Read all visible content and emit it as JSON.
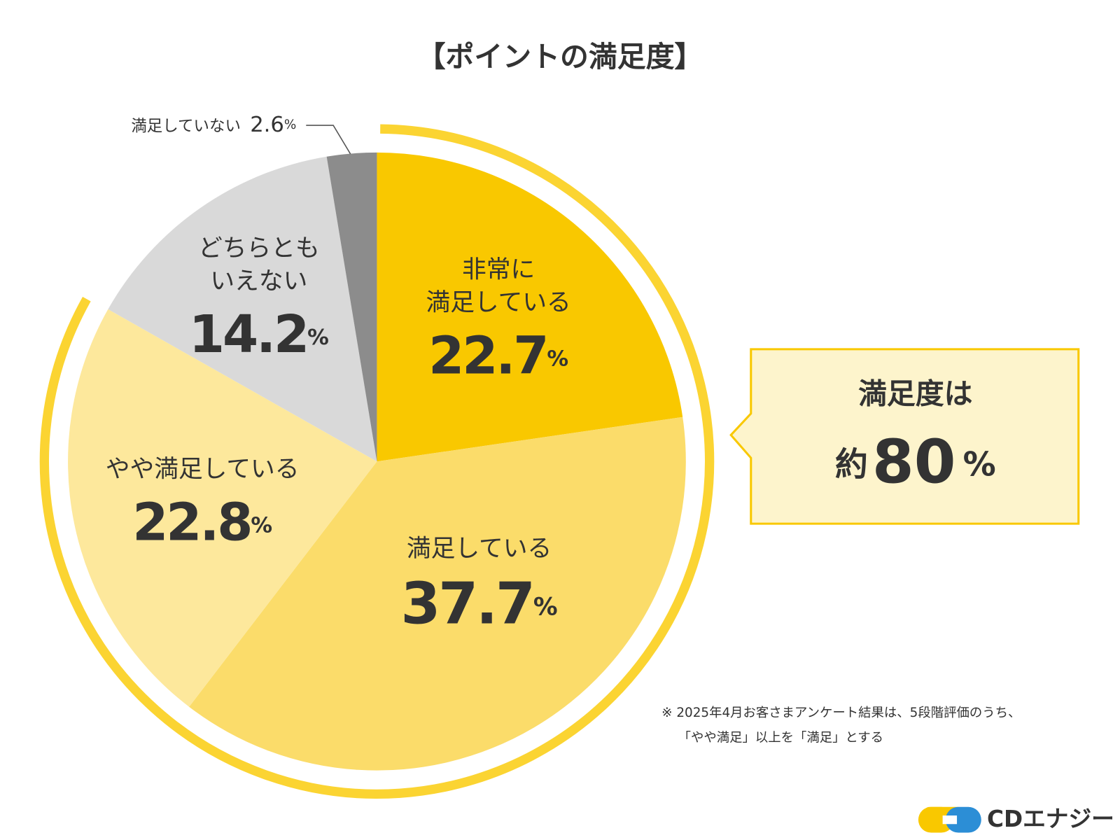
{
  "chart_data": {
    "type": "pie",
    "title": "【ポイントの満足度】",
    "categories": [
      "非常に\n満足している",
      "満足している",
      "やや満足している",
      "どちらとも\nいえない",
      "満足していない"
    ],
    "values": [
      22.7,
      37.7,
      22.8,
      14.2,
      2.6
    ],
    "value_labels": [
      "22.7%",
      "37.7%",
      "22.8%",
      "14.2%",
      "2.6%"
    ],
    "colors": [
      "#f9c800",
      "#fbdc6a",
      "#fde89c",
      "#d9d9d9",
      "#8c8c8c"
    ],
    "highlight_color": "#fbd432",
    "callout": [
      "満足度は",
      "約80%"
    ],
    "footnote": [
      "※ 2025年4月お客さまアンケート結果は、5段階評価のうち、",
      "「やや満足」以上を「満足」とする"
    ],
    "logo": "CDエナジー"
  }
}
